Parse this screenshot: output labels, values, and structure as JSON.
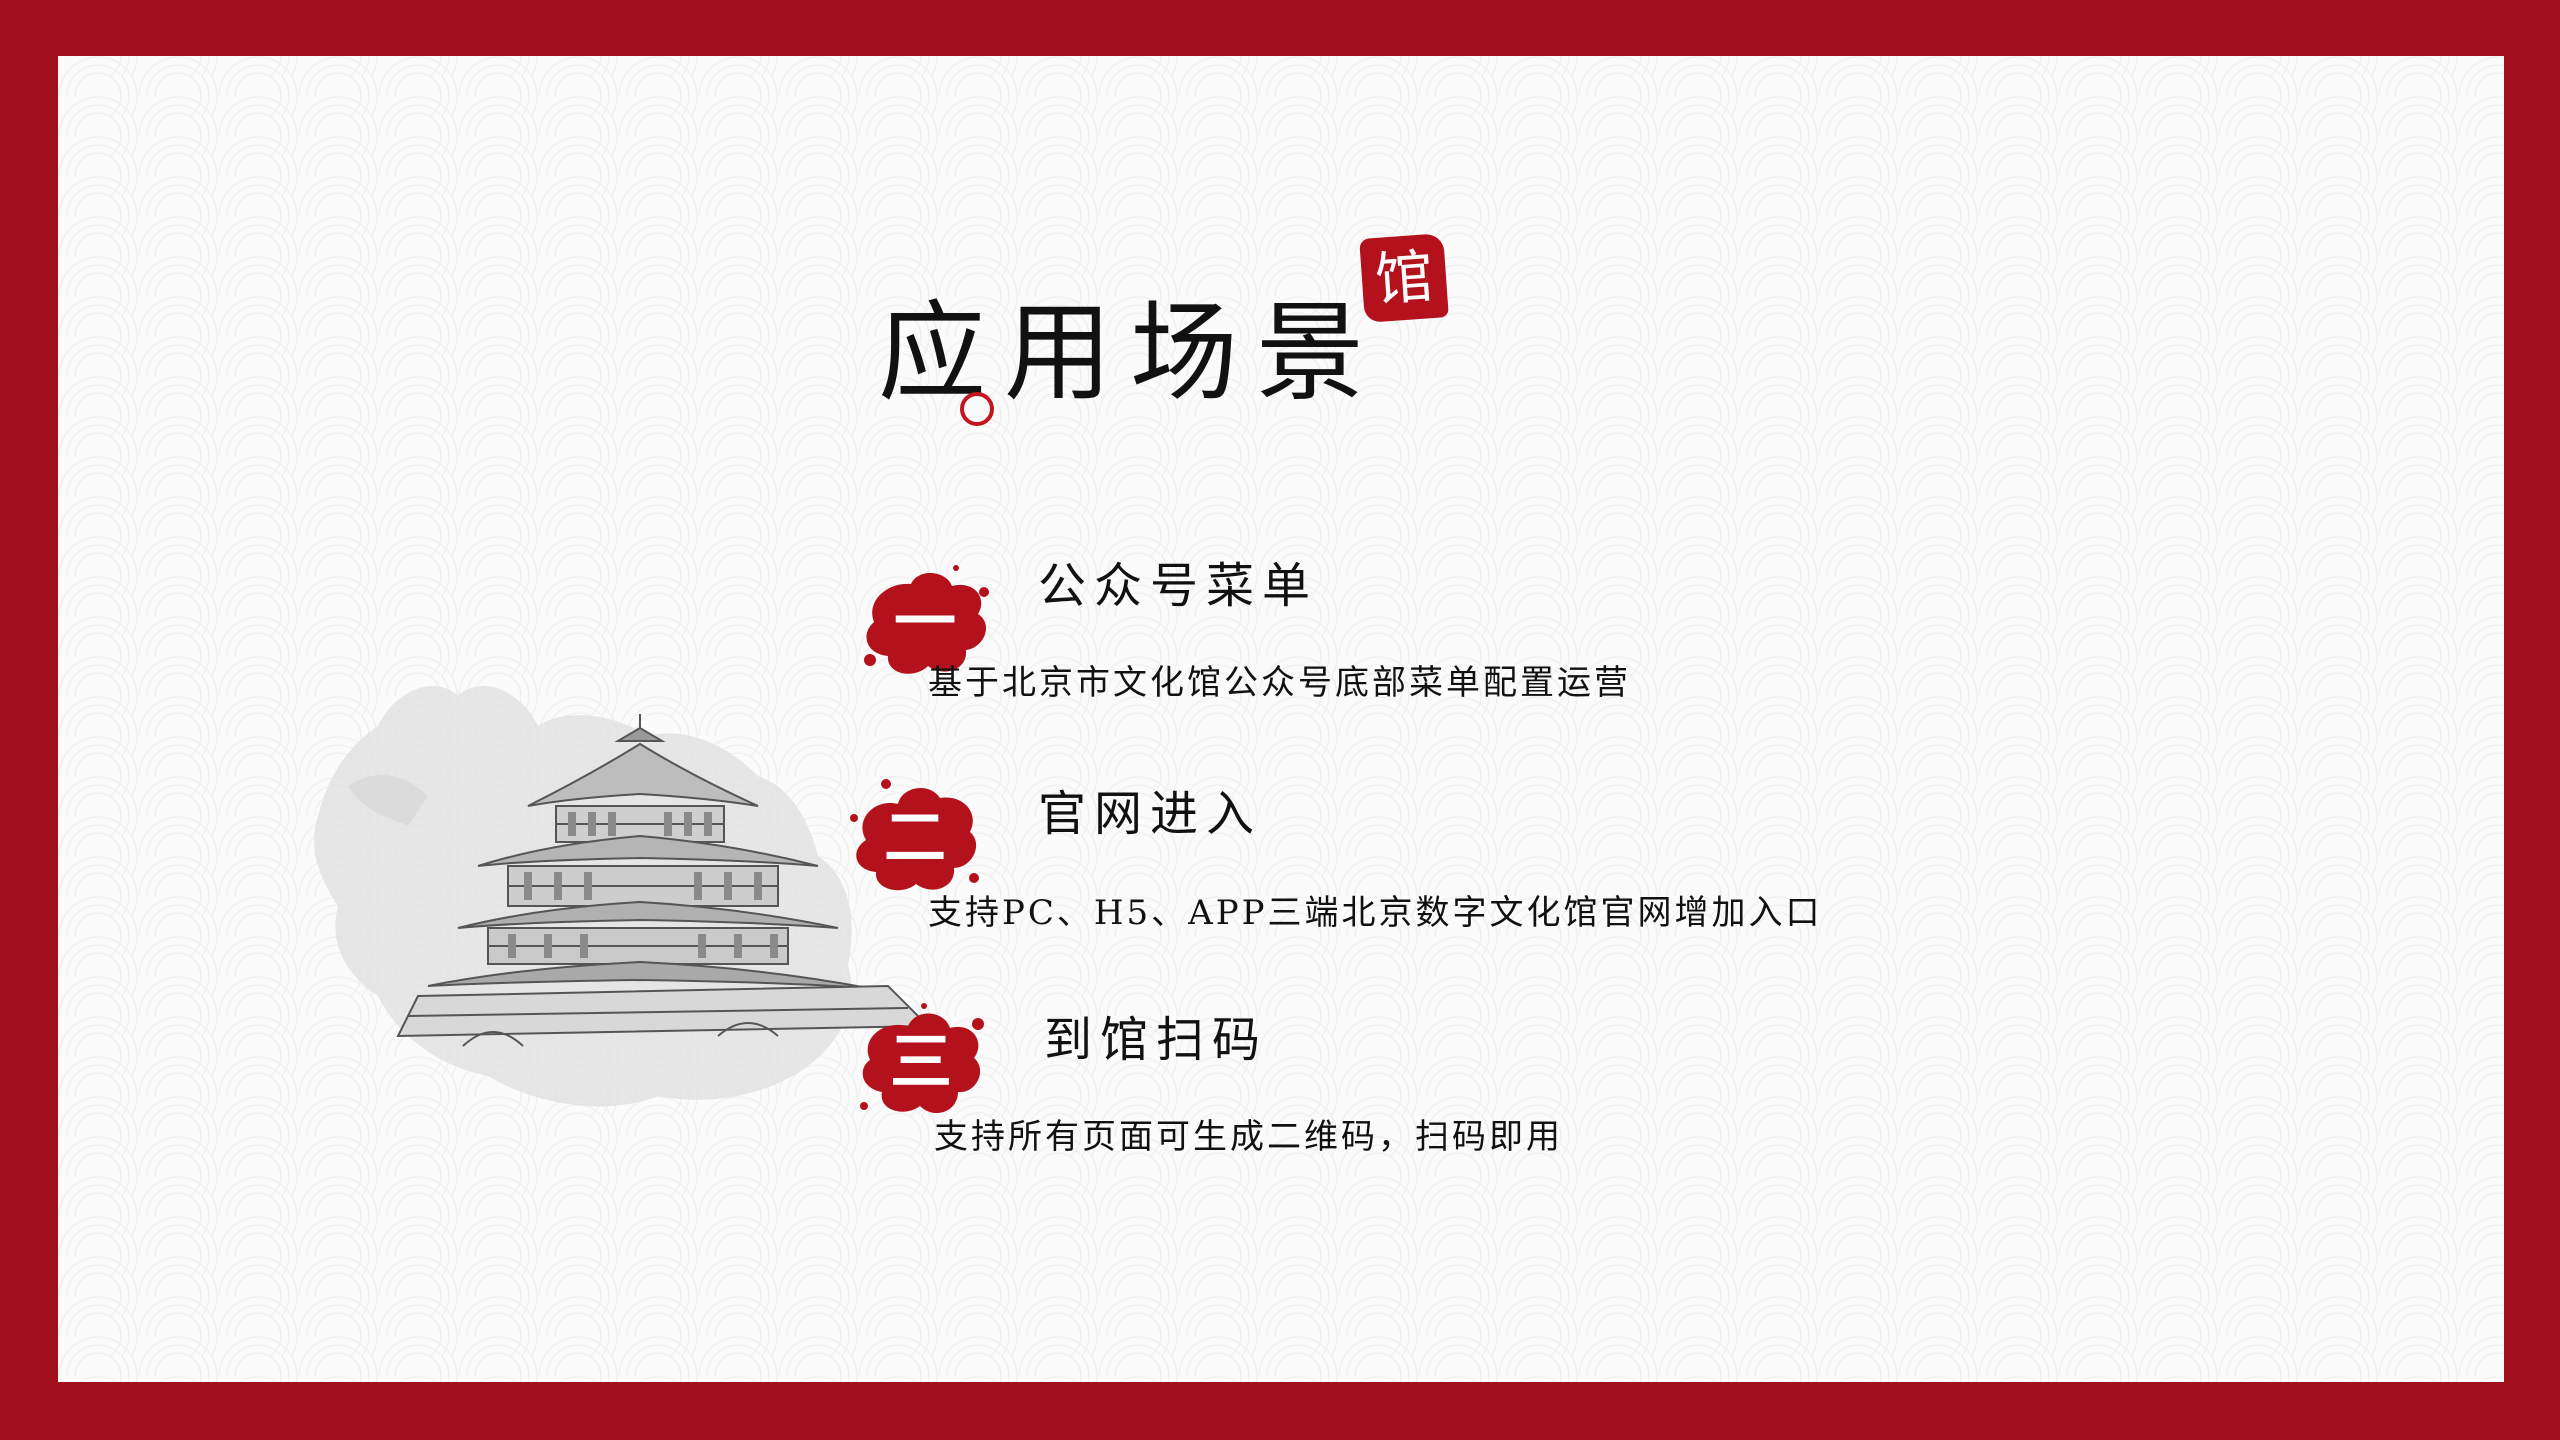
{
  "title": "应用场景",
  "seal": "馆",
  "colors": {
    "frame": "#a3101d",
    "accent": "#b3121c",
    "paper": "#fbfbfb"
  },
  "items": [
    {
      "num": "一",
      "heading": "公众号菜单",
      "desc": "基于北京市文化馆公众号底部菜单配置运营"
    },
    {
      "num": "二",
      "heading": "官网进入",
      "desc": "支持PC、H5、APP三端北京数字文化馆官网增加入口"
    },
    {
      "num": "三",
      "heading": "到馆扫码",
      "desc": "支持所有页面可生成二维码，扫码即用"
    }
  ]
}
